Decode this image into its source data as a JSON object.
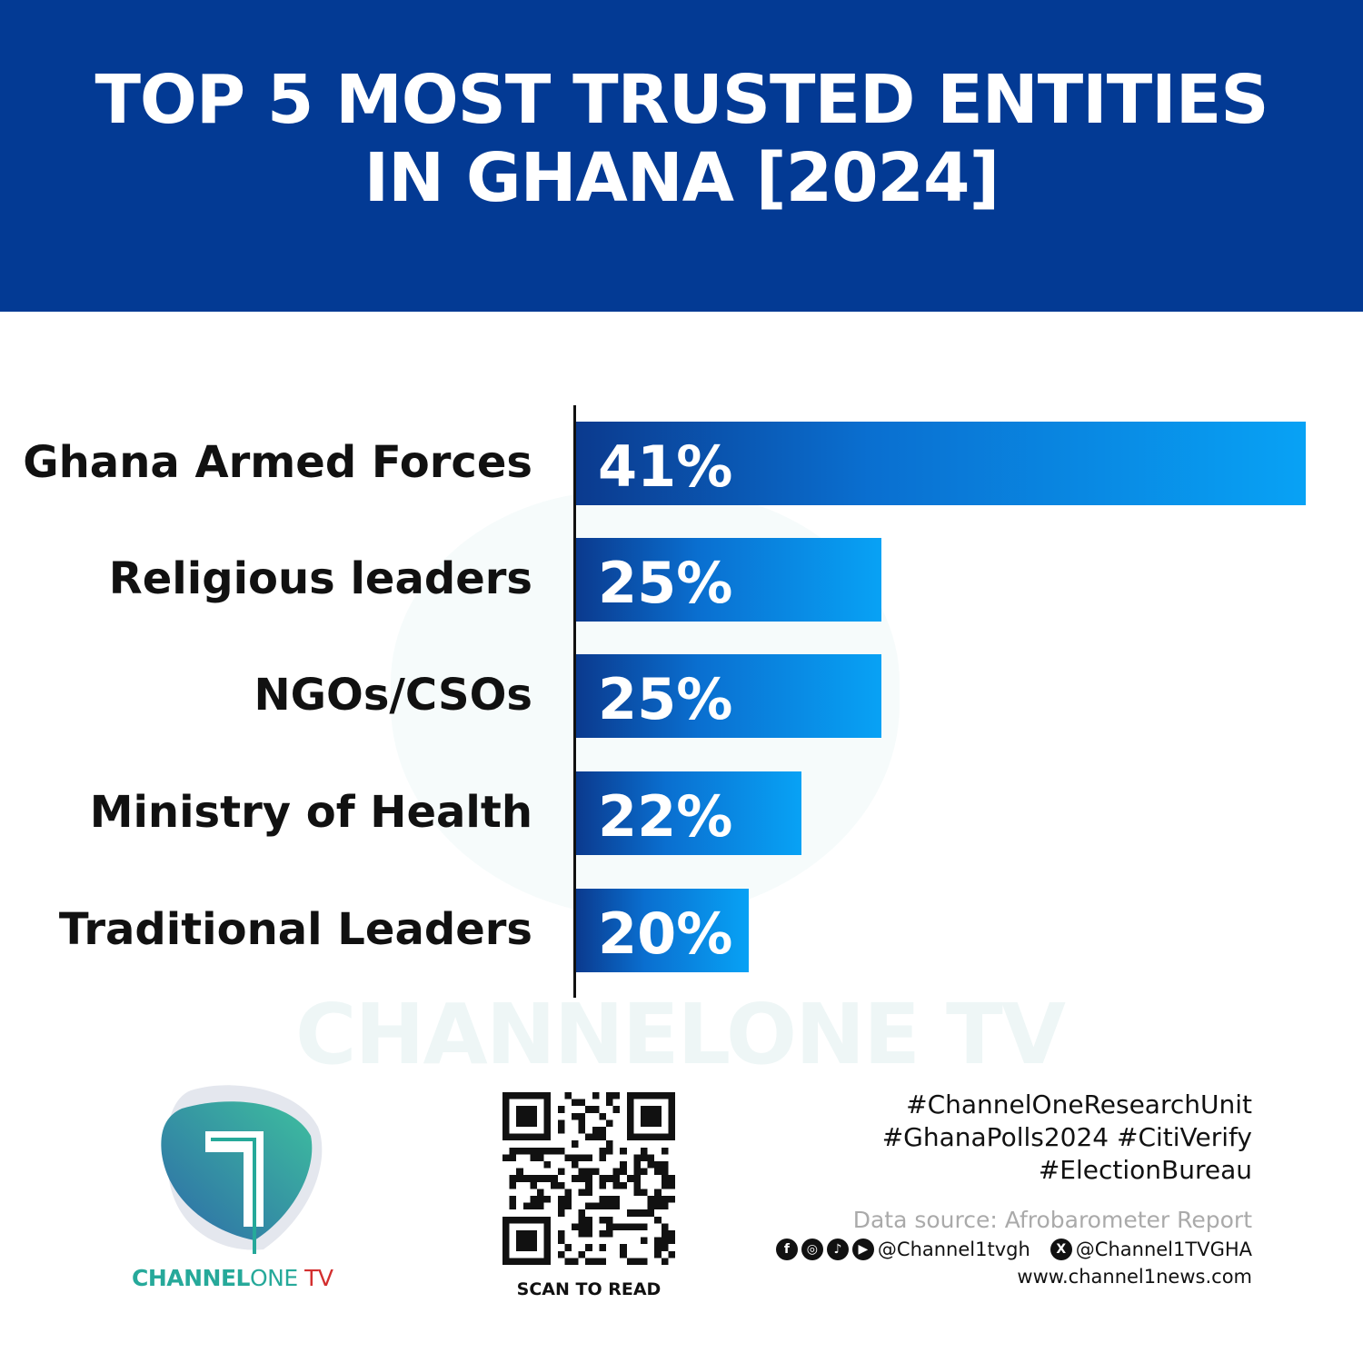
{
  "header": {
    "title_line1": "TOP 5 MOST TRUSTED ENTITIES",
    "title_line2": "IN GHANA [2024]"
  },
  "chart_data": {
    "type": "bar",
    "orientation": "horizontal",
    "title": "TOP 5 MOST TRUSTED ENTITIES IN GHANA [2024]",
    "categories": [
      "Ghana Armed Forces",
      "Religious leaders",
      "NGOs/CSOs",
      "Ministry of Health",
      "Traditional Leaders"
    ],
    "values": [
      41,
      25,
      25,
      22,
      20
    ],
    "value_labels": [
      "41%",
      "25%",
      "25%",
      "22%",
      "20%"
    ],
    "unit": "%",
    "grid": false,
    "colors": {
      "bar_start": "#0b3a8e",
      "bar_end": "#08a2f5"
    }
  },
  "watermark": "CHANNELONE TV",
  "logo": {
    "channel": "CHANNEL",
    "one": "ONE",
    "tv": " TV",
    "colors": {
      "teal": "#26a99a",
      "red": "#d32f2f"
    }
  },
  "qr": {
    "caption": "SCAN TO READ"
  },
  "footer": {
    "tags": [
      "#ChannelOneResearchUnit",
      "#GhanaPolls2024 #CitiVerify",
      "#ElectionBureau"
    ],
    "source": "Data source: Afrobarometer Report",
    "social_handle": "@Channel1tvgh",
    "x_handle": "@Channel1TVGHA",
    "website": "www.channel1news.com",
    "social_icons": [
      "facebook-icon",
      "instagram-icon",
      "tiktok-icon",
      "youtube-icon",
      "x-icon"
    ]
  }
}
